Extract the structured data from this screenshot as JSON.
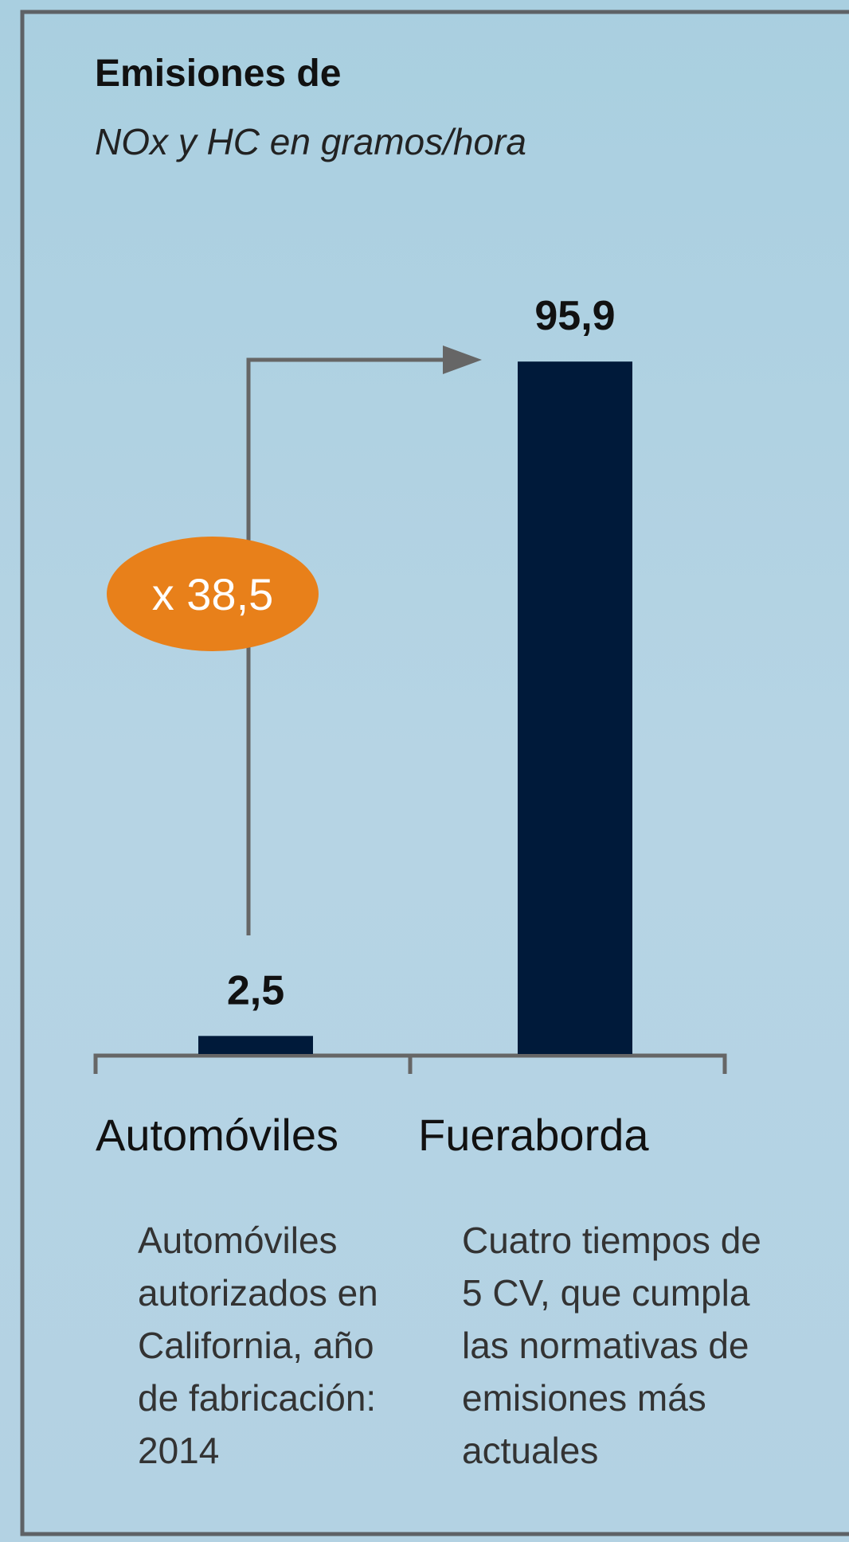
{
  "chart_data": {
    "type": "bar",
    "title": "Emisiones de",
    "subtitle": "NOx y HC en gramos/hora",
    "categories": [
      "Automóviles",
      "Fueraborda"
    ],
    "values": [
      2.5,
      95.9
    ],
    "value_labels": [
      "2,5",
      "95,9"
    ],
    "color": "#001a3a",
    "ylim": [
      0,
      100
    ],
    "annotation": "x 38,5",
    "annotation_color": "#e8801a",
    "notes": [
      [
        "Automóviles",
        "autorizados en",
        "California, año",
        "de fabricación:",
        "2014"
      ],
      [
        "Cuatro tiempos de",
        "5 CV, que cumpla",
        "las normativas de",
        "emisiones más",
        "actuales"
      ]
    ]
  }
}
